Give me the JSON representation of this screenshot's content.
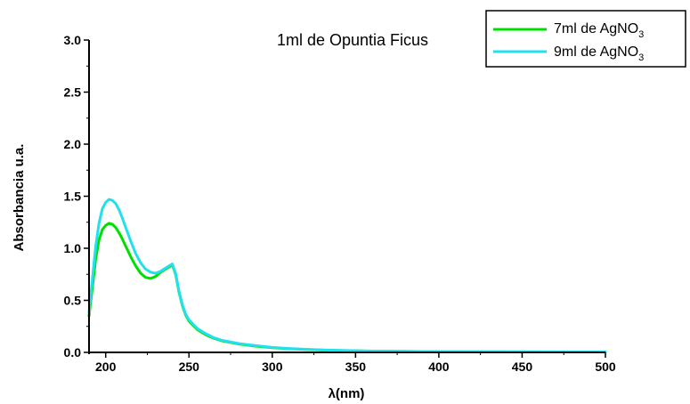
{
  "chart_data": {
    "type": "line",
    "title": "1ml de Opuntia Ficus",
    "xlabel": "λ(nm)",
    "ylabel": "Absorbancia u.a.",
    "xlim": [
      190,
      500
    ],
    "ylim": [
      0.0,
      3.0
    ],
    "xticks": [
      200,
      250,
      300,
      350,
      400,
      450,
      500
    ],
    "xtick_labels": [
      "200",
      "250",
      "300",
      "350",
      "400",
      "450",
      "500"
    ],
    "yticks": [
      0.0,
      0.5,
      1.0,
      1.5,
      2.0,
      2.5,
      3.0
    ],
    "ytick_labels": [
      "0.0",
      "0.5",
      "1.0",
      "1.5",
      "2.0",
      "2.5",
      "3.0"
    ],
    "grid": false,
    "legend_position": "top-right",
    "series": [
      {
        "name": "7ml de AgNO3",
        "label_main": "7ml de AgNO",
        "label_sub": "3",
        "color": "#00e000",
        "x": [
          190,
          192,
          194,
          196,
          198,
          200,
          202,
          204,
          206,
          208,
          210,
          212,
          215,
          218,
          221,
          224,
          227,
          230,
          233,
          236,
          238,
          240,
          242,
          244,
          246,
          248,
          250,
          255,
          260,
          265,
          270,
          280,
          290,
          300,
          310,
          320,
          330,
          340,
          350,
          360,
          380,
          400,
          420,
          450,
          480,
          500
        ],
        "y": [
          0.35,
          0.62,
          0.9,
          1.08,
          1.18,
          1.22,
          1.24,
          1.23,
          1.2,
          1.15,
          1.09,
          1.02,
          0.92,
          0.83,
          0.76,
          0.72,
          0.71,
          0.73,
          0.77,
          0.8,
          0.82,
          0.84,
          0.75,
          0.58,
          0.45,
          0.36,
          0.3,
          0.22,
          0.17,
          0.135,
          0.11,
          0.08,
          0.06,
          0.045,
          0.035,
          0.028,
          0.022,
          0.018,
          0.015,
          0.012,
          0.009,
          0.007,
          0.006,
          0.005,
          0.004,
          0.004
        ]
      },
      {
        "name": "9ml de AgNO3",
        "label_main": "9ml de AgNO",
        "label_sub": "3",
        "color": "#22e0ee",
        "x": [
          190,
          192,
          194,
          196,
          198,
          200,
          202,
          204,
          206,
          208,
          210,
          212,
          215,
          218,
          221,
          224,
          227,
          230,
          233,
          236,
          238,
          240,
          242,
          244,
          246,
          248,
          250,
          255,
          260,
          265,
          270,
          280,
          290,
          300,
          310,
          320,
          330,
          340,
          350,
          360,
          380,
          400,
          420,
          450,
          480,
          500
        ],
        "y": [
          0.38,
          0.7,
          1.02,
          1.24,
          1.38,
          1.44,
          1.47,
          1.46,
          1.43,
          1.37,
          1.29,
          1.2,
          1.07,
          0.95,
          0.86,
          0.8,
          0.77,
          0.76,
          0.78,
          0.81,
          0.83,
          0.85,
          0.76,
          0.59,
          0.46,
          0.37,
          0.31,
          0.23,
          0.18,
          0.14,
          0.115,
          0.085,
          0.065,
          0.048,
          0.038,
          0.03,
          0.024,
          0.019,
          0.016,
          0.013,
          0.01,
          0.008,
          0.007,
          0.006,
          0.005,
          0.005
        ]
      }
    ]
  }
}
